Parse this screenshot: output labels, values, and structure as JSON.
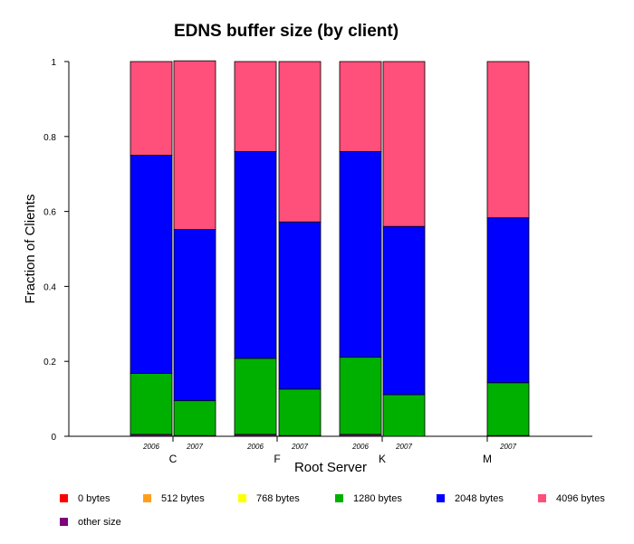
{
  "chart_data": {
    "type": "bar",
    "stacked": true,
    "title": "EDNS buffer size (by client)",
    "xlabel": "Root Server",
    "ylabel": "Fraction of Clients",
    "ylim": [
      0,
      1
    ],
    "yticks": [
      "0",
      "0.2",
      "0.4",
      "0.6",
      "0.8",
      "1"
    ],
    "groups": [
      "C",
      "F",
      "K",
      "M"
    ],
    "series": [
      {
        "name": "0 bytes",
        "color": "#ff0000"
      },
      {
        "name": "512 bytes",
        "color": "#ff9f1c"
      },
      {
        "name": "768 bytes",
        "color": "#ffff00"
      },
      {
        "name": "1280 bytes",
        "color": "#00b000"
      },
      {
        "name": "2048 bytes",
        "color": "#0000ff"
      },
      {
        "name": "4096 bytes",
        "color": "#ff4f7b"
      },
      {
        "name": "other size",
        "color": "#7f007f"
      }
    ],
    "bars": [
      {
        "group": "C",
        "year": "2006",
        "values": [
          0,
          0,
          0,
          0.163,
          0.582,
          0.25,
          0.005
        ]
      },
      {
        "group": "C",
        "year": "2007",
        "values": [
          0,
          0,
          0,
          0.093,
          0.457,
          0.45,
          0.002
        ]
      },
      {
        "group": "F",
        "year": "2006",
        "values": [
          0,
          0,
          0,
          0.203,
          0.552,
          0.24,
          0.005
        ]
      },
      {
        "group": "F",
        "year": "2007",
        "values": [
          0,
          0,
          0,
          0.124,
          0.446,
          0.428,
          0.002
        ]
      },
      {
        "group": "K",
        "year": "2006",
        "values": [
          0,
          0,
          0,
          0.206,
          0.549,
          0.24,
          0.005
        ]
      },
      {
        "group": "K",
        "year": "2007",
        "values": [
          0,
          0,
          0,
          0.111,
          0.449,
          0.44,
          0
        ]
      },
      {
        "group": "M",
        "year": "2007",
        "values": [
          0,
          0,
          0,
          0.141,
          0.44,
          0.417,
          0.002
        ]
      }
    ]
  }
}
